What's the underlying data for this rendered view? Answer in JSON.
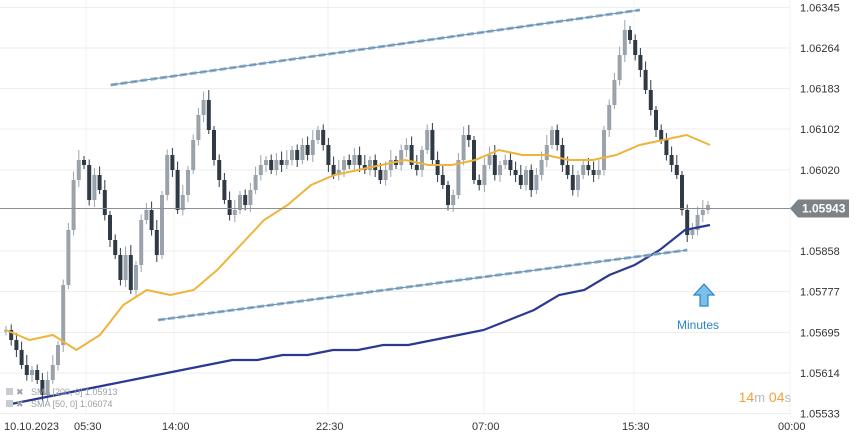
{
  "chart_data": {
    "type": "candlestick",
    "y_axis": {
      "ticks": [
        "1.06345",
        "1.06264",
        "1.06183",
        "1.06102",
        "1.06020",
        "1.05858",
        "1.05777",
        "1.05695",
        "1.05614",
        "1.05533"
      ],
      "ylim": [
        1.0553,
        1.0636
      ]
    },
    "x_axis": {
      "ticks": [
        "10.10.2023",
        "05:30",
        "14:00",
        "22:30",
        "07:00",
        "15:30",
        "00:00"
      ]
    },
    "current_price": {
      "label": "1.05943",
      "value": 1.05943
    },
    "candles_close": [
      1.057,
      1.0568,
      1.0566,
      1.0563,
      1.0561,
      1.0562,
      1.056,
      1.0557,
      1.056,
      1.0563,
      1.0567,
      1.0579,
      1.059,
      1.06,
      1.0604,
      1.0603,
      1.0596,
      1.0601,
      1.0598,
      1.0593,
      1.0588,
      1.0585,
      1.058,
      1.0585,
      1.0578,
      1.0583,
      1.0592,
      1.0594,
      1.059,
      1.0585,
      1.0597,
      1.0605,
      1.0602,
      1.0594,
      1.0597,
      1.0602,
      1.0608,
      1.0613,
      1.0616,
      1.061,
      1.0604,
      1.06,
      1.0596,
      1.0593,
      1.0594,
      1.0597,
      1.0595,
      1.0598,
      1.0601,
      1.0603,
      1.0604,
      1.0602,
      1.0604,
      1.0603,
      1.0604,
      1.0606,
      1.0604,
      1.0607,
      1.0605,
      1.0608,
      1.061,
      1.0607,
      1.0603,
      1.0601,
      1.0602,
      1.0604,
      1.0603,
      1.0605,
      1.0603,
      1.0602,
      1.0604,
      1.0602,
      1.06,
      1.0602,
      1.0604,
      1.0603,
      1.0606,
      1.0607,
      1.0603,
      1.0602,
      1.0606,
      1.061,
      1.0604,
      1.0601,
      1.0599,
      1.0595,
      1.0597,
      1.0604,
      1.0609,
      1.0608,
      1.06,
      1.0599,
      1.0603,
      1.0605,
      1.0601,
      1.0603,
      1.0604,
      1.0602,
      1.0601,
      1.0599,
      1.0602,
      1.0598,
      1.0601,
      1.0604,
      1.0607,
      1.061,
      1.0607,
      1.0603,
      1.0601,
      1.0598,
      1.0601,
      1.0603,
      1.0602,
      1.0601,
      1.0602,
      1.061,
      1.0615,
      1.062,
      1.0625,
      1.063,
      1.0628,
      1.0625,
      1.0622,
      1.0618,
      1.0614,
      1.061,
      1.0608,
      1.0605,
      1.0603,
      1.0601,
      1.0594,
      1.0589,
      1.059,
      1.0593,
      1.0594,
      1.0595
    ],
    "series": [
      {
        "name": "SMA [200, 0]",
        "value_label": "1.05913",
        "color": "#2b3990",
        "values": [
          1.0555,
          1.0556,
          1.0557,
          1.0558,
          1.0559,
          1.056,
          1.0561,
          1.0562,
          1.0563,
          1.0564,
          1.0564,
          1.0565,
          1.0565,
          1.0566,
          1.0566,
          1.0567,
          1.0567,
          1.0568,
          1.0569,
          1.057,
          1.0572,
          1.0574,
          1.0577,
          1.0578,
          1.0581,
          1.0583,
          1.0586,
          1.059,
          1.0591
        ]
      },
      {
        "name": "SMA [50, 0]",
        "value_label": "1.06074",
        "color": "#f0b33a",
        "values": [
          1.057,
          1.0568,
          1.0569,
          1.0566,
          1.0569,
          1.0575,
          1.0578,
          1.0577,
          1.0578,
          1.0582,
          1.0587,
          1.0592,
          1.0595,
          1.0599,
          1.0601,
          1.0602,
          1.0603,
          1.0604,
          1.0603,
          1.0603,
          1.0604,
          1.0606,
          1.0605,
          1.0605,
          1.0604,
          1.0604,
          1.0605,
          1.0607,
          1.0608,
          1.0609,
          1.0607
        ]
      }
    ],
    "trendlines": [
      {
        "from": [
          0.14,
          1.0619
        ],
        "to": [
          0.81,
          1.0634
        ]
      },
      {
        "from": [
          0.2,
          1.0572
        ],
        "to": [
          0.87,
          1.0586
        ]
      }
    ],
    "annotation": {
      "text": "Minutes",
      "icon": "up-arrow-icon"
    },
    "countdown": {
      "minutes": "14",
      "m_unit": "m",
      "seconds": "04",
      "s_unit": "s"
    },
    "legend_icons": [
      "chart-icon",
      "close-icon",
      "settings-icon"
    ]
  }
}
